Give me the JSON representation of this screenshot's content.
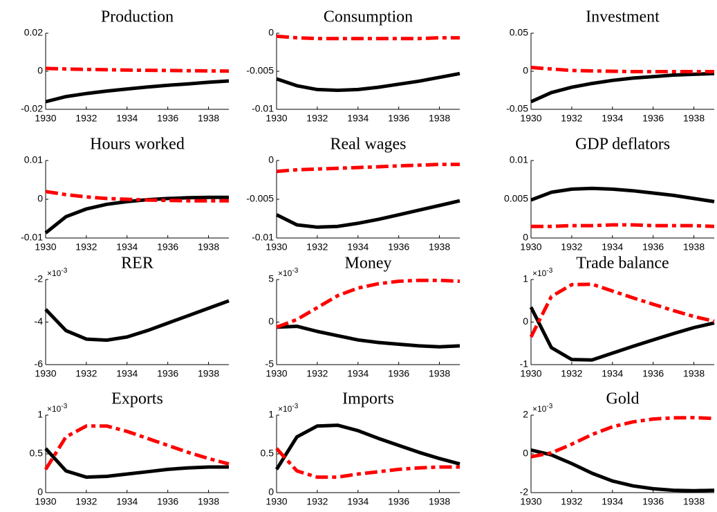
{
  "chart_data": [
    {
      "type": "line",
      "title": "Production",
      "x": [
        1930,
        1931,
        1932,
        1933,
        1934,
        1935,
        1936,
        1937,
        1938,
        1939
      ],
      "xlim": [
        1930,
        1939
      ],
      "xticks": [
        1930,
        1932,
        1934,
        1936,
        1938
      ],
      "ylim": [
        -0.02,
        0.02
      ],
      "yticks": [
        -0.02,
        0,
        0.02
      ],
      "series": [
        {
          "color": "#000000",
          "style": "solid",
          "values": [
            -0.016,
            -0.0133,
            -0.0117,
            -0.0104,
            -0.0093,
            -0.0083,
            -0.0074,
            -0.0066,
            -0.0058,
            -0.0051
          ]
        },
        {
          "color": "#ff0000",
          "style": "dash-dot",
          "values": [
            0.0015,
            0.0012,
            0.001,
            0.0008,
            0.0006,
            0.0005,
            0.0004,
            0.0003,
            0.0002,
            0.0001
          ]
        }
      ]
    },
    {
      "type": "line",
      "title": "Consumption",
      "x": [
        1930,
        1931,
        1932,
        1933,
        1934,
        1935,
        1936,
        1937,
        1938,
        1939
      ],
      "xlim": [
        1930,
        1939
      ],
      "xticks": [
        1930,
        1932,
        1934,
        1936,
        1938
      ],
      "ylim": [
        -0.01,
        0
      ],
      "yticks": [
        -0.01,
        -0.005,
        0
      ],
      "series": [
        {
          "color": "#000000",
          "style": "solid",
          "values": [
            -0.006,
            -0.0069,
            -0.0074,
            -0.0075,
            -0.0074,
            -0.0071,
            -0.0067,
            -0.0063,
            -0.0058,
            -0.0053
          ]
        },
        {
          "color": "#ff0000",
          "style": "dash-dot",
          "values": [
            -0.0004,
            -0.0006,
            -0.0007,
            -0.0007,
            -0.0007,
            -0.0007,
            -0.0007,
            -0.0007,
            -0.0006,
            -0.0006
          ]
        }
      ]
    },
    {
      "type": "line",
      "title": "Investment",
      "x": [
        1930,
        1931,
        1932,
        1933,
        1934,
        1935,
        1936,
        1937,
        1938,
        1939
      ],
      "xlim": [
        1930,
        1939
      ],
      "xticks": [
        1930,
        1932,
        1934,
        1936,
        1938
      ],
      "ylim": [
        -0.05,
        0.05
      ],
      "yticks": [
        -0.05,
        0,
        0.05
      ],
      "series": [
        {
          "color": "#000000",
          "style": "solid",
          "values": [
            -0.04,
            -0.028,
            -0.021,
            -0.016,
            -0.012,
            -0.009,
            -0.007,
            -0.005,
            -0.004,
            -0.003
          ]
        },
        {
          "color": "#ff0000",
          "style": "dash-dot",
          "values": [
            0.005,
            0.003,
            0.001,
            0.0005,
            0,
            -0.0005,
            -0.0005,
            -0.0005,
            -0.0005,
            -0.0005
          ]
        }
      ]
    },
    {
      "type": "line",
      "title": "Hours worked",
      "x": [
        1930,
        1931,
        1932,
        1933,
        1934,
        1935,
        1936,
        1937,
        1938,
        1939
      ],
      "xlim": [
        1930,
        1939
      ],
      "xticks": [
        1930,
        1932,
        1934,
        1936,
        1938
      ],
      "ylim": [
        -0.01,
        0.01
      ],
      "yticks": [
        -0.01,
        0,
        0.01
      ],
      "series": [
        {
          "color": "#000000",
          "style": "solid",
          "values": [
            -0.0087,
            -0.0045,
            -0.0025,
            -0.0013,
            -0.0006,
            -0.0001,
            0.0002,
            0.0004,
            0.0005,
            0.0005
          ]
        },
        {
          "color": "#ff0000",
          "style": "dash-dot",
          "values": [
            0.002,
            0.0012,
            0.0006,
            0.0002,
            0,
            -0.0002,
            -0.0003,
            -0.0004,
            -0.0004,
            -0.0004
          ]
        }
      ]
    },
    {
      "type": "line",
      "title": "Real wages",
      "x": [
        1930,
        1931,
        1932,
        1933,
        1934,
        1935,
        1936,
        1937,
        1938,
        1939
      ],
      "xlim": [
        1930,
        1939
      ],
      "xticks": [
        1930,
        1932,
        1934,
        1936,
        1938
      ],
      "ylim": [
        -0.01,
        0
      ],
      "yticks": [
        -0.01,
        -0.005,
        0
      ],
      "series": [
        {
          "color": "#000000",
          "style": "solid",
          "values": [
            -0.007,
            -0.0083,
            -0.0086,
            -0.0085,
            -0.0081,
            -0.0076,
            -0.007,
            -0.0064,
            -0.0058,
            -0.0052
          ]
        },
        {
          "color": "#ff0000",
          "style": "dash-dot",
          "values": [
            -0.0014,
            -0.0012,
            -0.0011,
            -0.001,
            -0.0009,
            -0.0008,
            -0.0007,
            -0.0006,
            -0.0005,
            -0.0005
          ]
        }
      ]
    },
    {
      "type": "line",
      "title": "GDP deflators",
      "x": [
        1930,
        1931,
        1932,
        1933,
        1934,
        1935,
        1936,
        1937,
        1938,
        1939
      ],
      "xlim": [
        1930,
        1939
      ],
      "xticks": [
        1930,
        1932,
        1934,
        1936,
        1938
      ],
      "ylim": [
        0,
        0.01
      ],
      "yticks": [
        0,
        0.005,
        0.01
      ],
      "series": [
        {
          "color": "#000000",
          "style": "solid",
          "values": [
            0.0049,
            0.0059,
            0.0063,
            0.0064,
            0.0063,
            0.0061,
            0.0058,
            0.0055,
            0.0051,
            0.0047
          ]
        },
        {
          "color": "#ff0000",
          "style": "dash-dot",
          "values": [
            0.0015,
            0.0015,
            0.0016,
            0.0016,
            0.0017,
            0.0017,
            0.0016,
            0.0016,
            0.0016,
            0.0015
          ]
        }
      ]
    },
    {
      "type": "line",
      "title": "RER",
      "multiplier": "×10",
      "multiplier_exponent": "-3",
      "x": [
        1930,
        1931,
        1932,
        1933,
        1934,
        1935,
        1936,
        1937,
        1938,
        1939
      ],
      "xlim": [
        1930,
        1939
      ],
      "xticks": [
        1930,
        1932,
        1934,
        1936,
        1938
      ],
      "ylim": [
        -6,
        -2
      ],
      "yticks": [
        -6,
        -4,
        -2
      ],
      "series": [
        {
          "color": "#000000",
          "style": "solid",
          "values": [
            -3.4,
            -4.4,
            -4.8,
            -4.85,
            -4.7,
            -4.4,
            -4.05,
            -3.7,
            -3.35,
            -3.0
          ]
        }
      ]
    },
    {
      "type": "line",
      "title": "Money",
      "multiplier": "×10",
      "multiplier_exponent": "-3",
      "x": [
        1930,
        1931,
        1932,
        1933,
        1934,
        1935,
        1936,
        1937,
        1938,
        1939
      ],
      "xlim": [
        1930,
        1939
      ],
      "xticks": [
        1930,
        1932,
        1934,
        1936,
        1938
      ],
      "ylim": [
        -5,
        5
      ],
      "yticks": [
        -5,
        0,
        5
      ],
      "series": [
        {
          "color": "#000000",
          "style": "solid",
          "values": [
            -0.6,
            -0.5,
            -1.1,
            -1.6,
            -2.1,
            -2.4,
            -2.6,
            -2.8,
            -2.9,
            -2.8
          ]
        },
        {
          "color": "#ff0000",
          "style": "dash-dot",
          "values": [
            -0.6,
            0.3,
            1.7,
            3.1,
            4.0,
            4.5,
            4.8,
            4.9,
            4.9,
            4.8
          ]
        }
      ]
    },
    {
      "type": "line",
      "title": "Trade balance",
      "multiplier": "×10",
      "multiplier_exponent": "-3",
      "x": [
        1930,
        1931,
        1932,
        1933,
        1934,
        1935,
        1936,
        1937,
        1938,
        1939
      ],
      "xlim": [
        1930,
        1939
      ],
      "xticks": [
        1930,
        1932,
        1934,
        1936,
        1938
      ],
      "ylim": [
        -1,
        1
      ],
      "yticks": [
        -1,
        0,
        1
      ],
      "series": [
        {
          "color": "#000000",
          "style": "solid",
          "values": [
            0.35,
            -0.6,
            -0.88,
            -0.89,
            -0.73,
            -0.57,
            -0.42,
            -0.27,
            -0.13,
            -0.02
          ]
        },
        {
          "color": "#ff0000",
          "style": "dash-dot",
          "values": [
            -0.35,
            0.6,
            0.88,
            0.89,
            0.73,
            0.57,
            0.42,
            0.27,
            0.13,
            0.02
          ]
        }
      ]
    },
    {
      "type": "line",
      "title": "Exports",
      "multiplier": "×10",
      "multiplier_exponent": "-3",
      "x": [
        1930,
        1931,
        1932,
        1933,
        1934,
        1935,
        1936,
        1937,
        1938,
        1939
      ],
      "xlim": [
        1930,
        1939
      ],
      "xticks": [
        1930,
        1932,
        1934,
        1936,
        1938
      ],
      "ylim": [
        0,
        1
      ],
      "yticks": [
        0,
        0.5,
        1
      ],
      "series": [
        {
          "color": "#000000",
          "style": "solid",
          "values": [
            0.57,
            0.28,
            0.2,
            0.21,
            0.24,
            0.27,
            0.3,
            0.32,
            0.33,
            0.33
          ]
        },
        {
          "color": "#ff0000",
          "style": "dash-dot",
          "values": [
            0.3,
            0.72,
            0.86,
            0.86,
            0.79,
            0.7,
            0.61,
            0.52,
            0.44,
            0.37
          ]
        }
      ]
    },
    {
      "type": "line",
      "title": "Imports",
      "multiplier": "×10",
      "multiplier_exponent": "-3",
      "x": [
        1930,
        1931,
        1932,
        1933,
        1934,
        1935,
        1936,
        1937,
        1938,
        1939
      ],
      "xlim": [
        1930,
        1939
      ],
      "xticks": [
        1930,
        1932,
        1934,
        1936,
        1938
      ],
      "ylim": [
        0,
        1
      ],
      "yticks": [
        0,
        0.5,
        1
      ],
      "series": [
        {
          "color": "#000000",
          "style": "solid",
          "values": [
            0.3,
            0.72,
            0.86,
            0.87,
            0.8,
            0.7,
            0.61,
            0.52,
            0.44,
            0.37
          ]
        },
        {
          "color": "#ff0000",
          "style": "dash-dot",
          "values": [
            0.57,
            0.28,
            0.2,
            0.2,
            0.24,
            0.27,
            0.3,
            0.32,
            0.33,
            0.33
          ]
        }
      ]
    },
    {
      "type": "line",
      "title": "Gold",
      "multiplier": "×10",
      "multiplier_exponent": "-3",
      "x": [
        1930,
        1931,
        1932,
        1933,
        1934,
        1935,
        1936,
        1937,
        1938,
        1939
      ],
      "xlim": [
        1930,
        1939
      ],
      "xticks": [
        1930,
        1932,
        1934,
        1936,
        1938
      ],
      "ylim": [
        -2,
        2
      ],
      "yticks": [
        -2,
        0,
        2
      ],
      "series": [
        {
          "color": "#000000",
          "style": "solid",
          "values": [
            0.2,
            -0.05,
            -0.5,
            -1.0,
            -1.4,
            -1.65,
            -1.8,
            -1.88,
            -1.9,
            -1.88
          ]
        },
        {
          "color": "#ff0000",
          "style": "dash-dot",
          "values": [
            -0.15,
            0.05,
            0.5,
            1.0,
            1.4,
            1.65,
            1.8,
            1.86,
            1.87,
            1.83
          ]
        }
      ]
    }
  ]
}
